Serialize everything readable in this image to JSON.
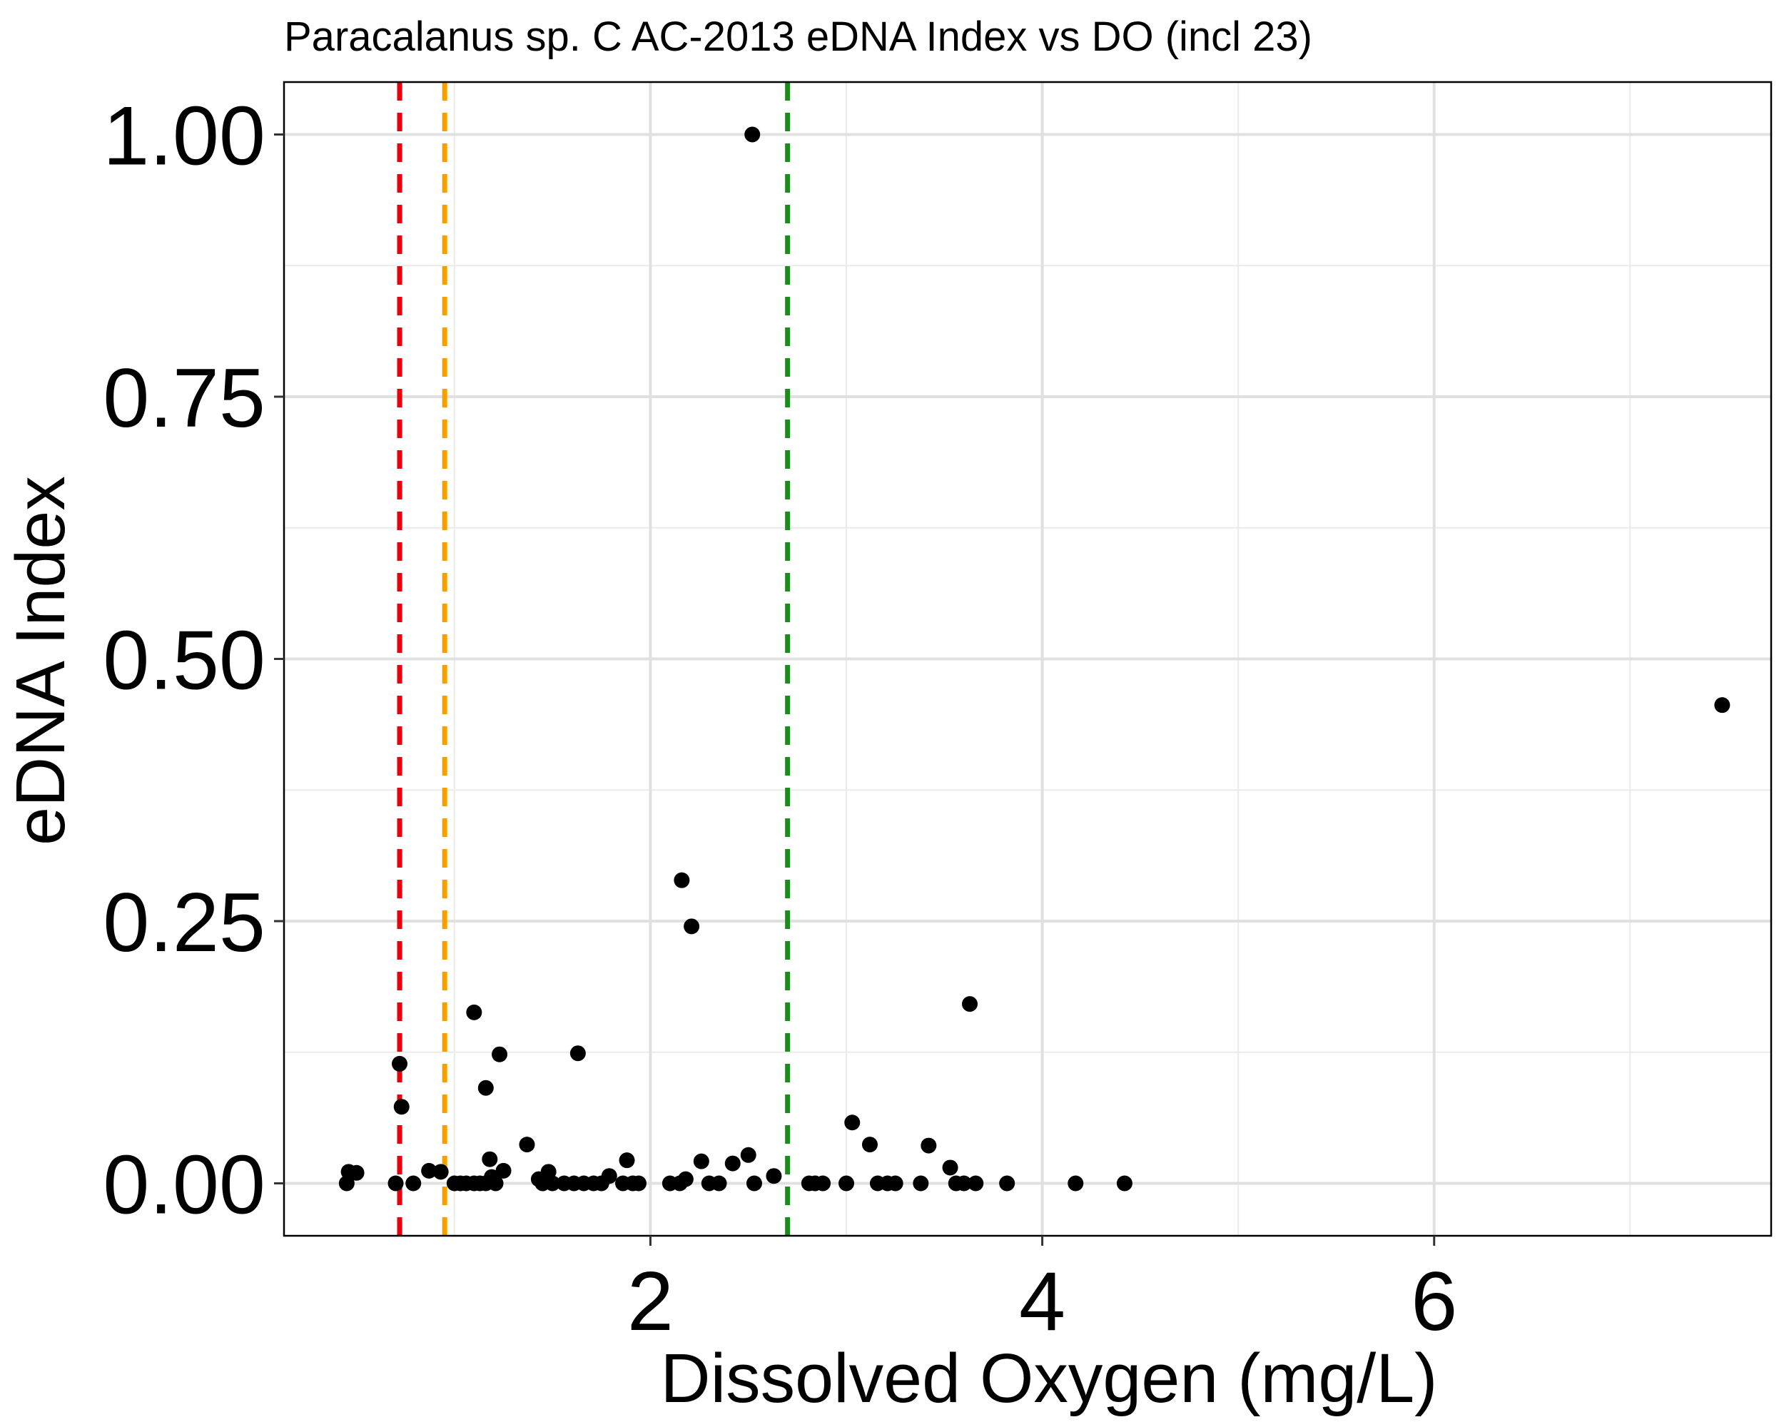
{
  "chart_data": {
    "type": "scatter",
    "title": "Paracalanus sp. C AC-2013 eDNA Index vs DO (incl 23)",
    "xlabel": "Dissolved Oxygen (mg/L)",
    "ylabel": "eDNA Index",
    "xlim": [
      0.13,
      7.72
    ],
    "ylim": [
      -0.05,
      1.05
    ],
    "x_ticks": [
      2,
      4,
      6
    ],
    "x_tick_labels": [
      "2",
      "4",
      "6"
    ],
    "x_minor_ticks": [
      1,
      3,
      5,
      7
    ],
    "y_ticks": [
      0,
      0.25,
      0.5,
      0.75,
      1
    ],
    "y_tick_labels": [
      "0.00",
      "0.25",
      "0.50",
      "0.75",
      "1.00"
    ],
    "y_minor_ticks": [
      0.125,
      0.375,
      0.625,
      0.875
    ],
    "grid": true,
    "legend": "none",
    "point_color": "#000000",
    "reference_lines": [
      {
        "x": 0.72,
        "color": "#e8000b"
      },
      {
        "x": 0.95,
        "color": "#f5a000"
      },
      {
        "x": 2.7,
        "color": "#1f8a1f"
      }
    ],
    "points": [
      {
        "x": 0.45,
        "y": 0.0
      },
      {
        "x": 0.46,
        "y": 0.011
      },
      {
        "x": 0.5,
        "y": 0.01
      },
      {
        "x": 0.7,
        "y": 0.0
      },
      {
        "x": 0.72,
        "y": 0.114
      },
      {
        "x": 0.73,
        "y": 0.073
      },
      {
        "x": 0.79,
        "y": 0.0
      },
      {
        "x": 0.87,
        "y": 0.012
      },
      {
        "x": 0.93,
        "y": 0.011
      },
      {
        "x": 1.0,
        "y": 0.0
      },
      {
        "x": 1.03,
        "y": 0.0
      },
      {
        "x": 1.06,
        "y": 0.0
      },
      {
        "x": 1.1,
        "y": 0.0
      },
      {
        "x": 1.13,
        "y": 0.0
      },
      {
        "x": 1.16,
        "y": 0.0
      },
      {
        "x": 1.1,
        "y": 0.163
      },
      {
        "x": 1.16,
        "y": 0.091
      },
      {
        "x": 1.18,
        "y": 0.023
      },
      {
        "x": 1.19,
        "y": 0.006
      },
      {
        "x": 1.21,
        "y": 0.0
      },
      {
        "x": 1.23,
        "y": 0.123
      },
      {
        "x": 1.25,
        "y": 0.012
      },
      {
        "x": 1.37,
        "y": 0.037
      },
      {
        "x": 1.43,
        "y": 0.004
      },
      {
        "x": 1.45,
        "y": 0.0
      },
      {
        "x": 1.48,
        "y": 0.011
      },
      {
        "x": 1.5,
        "y": 0.0
      },
      {
        "x": 1.56,
        "y": 0.0
      },
      {
        "x": 1.61,
        "y": 0.0
      },
      {
        "x": 1.63,
        "y": 0.124
      },
      {
        "x": 1.66,
        "y": 0.0
      },
      {
        "x": 1.71,
        "y": 0.0
      },
      {
        "x": 1.75,
        "y": 0.0
      },
      {
        "x": 1.79,
        "y": 0.007
      },
      {
        "x": 1.86,
        "y": 0.0
      },
      {
        "x": 1.88,
        "y": 0.022
      },
      {
        "x": 1.91,
        "y": 0.0
      },
      {
        "x": 1.94,
        "y": 0.0
      },
      {
        "x": 2.1,
        "y": 0.0
      },
      {
        "x": 2.15,
        "y": 0.0
      },
      {
        "x": 2.16,
        "y": 0.289
      },
      {
        "x": 2.18,
        "y": 0.004
      },
      {
        "x": 2.21,
        "y": 0.245
      },
      {
        "x": 2.26,
        "y": 0.021
      },
      {
        "x": 2.3,
        "y": 0.0
      },
      {
        "x": 2.35,
        "y": 0.0
      },
      {
        "x": 2.42,
        "y": 0.019
      },
      {
        "x": 2.5,
        "y": 0.027
      },
      {
        "x": 2.52,
        "y": 1.0
      },
      {
        "x": 2.53,
        "y": 0.0
      },
      {
        "x": 2.63,
        "y": 0.007
      },
      {
        "x": 2.81,
        "y": 0.0
      },
      {
        "x": 2.84,
        "y": 0.0
      },
      {
        "x": 2.88,
        "y": 0.0
      },
      {
        "x": 3.0,
        "y": 0.0
      },
      {
        "x": 3.03,
        "y": 0.058
      },
      {
        "x": 3.12,
        "y": 0.037
      },
      {
        "x": 3.16,
        "y": 0.0
      },
      {
        "x": 3.21,
        "y": 0.0
      },
      {
        "x": 3.25,
        "y": 0.0
      },
      {
        "x": 3.38,
        "y": 0.0
      },
      {
        "x": 3.42,
        "y": 0.036
      },
      {
        "x": 3.53,
        "y": 0.015
      },
      {
        "x": 3.56,
        "y": 0.0
      },
      {
        "x": 3.6,
        "y": 0.0
      },
      {
        "x": 3.63,
        "y": 0.171
      },
      {
        "x": 3.66,
        "y": 0.0
      },
      {
        "x": 3.82,
        "y": 0.0
      },
      {
        "x": 4.17,
        "y": 0.0
      },
      {
        "x": 4.42,
        "y": 0.0
      },
      {
        "x": 7.47,
        "y": 0.456
      }
    ]
  }
}
